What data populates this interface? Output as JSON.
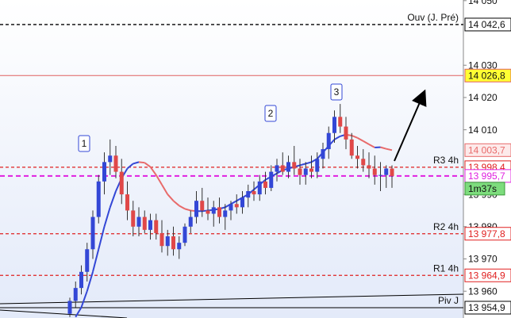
{
  "chart_data": {
    "type": "candlestick",
    "ylim": [
      13951.7,
      14050.2
    ],
    "yticks": [
      {
        "value": 14050,
        "label": "14 050"
      },
      {
        "value": 14030,
        "label": "14 030"
      },
      {
        "value": 14020,
        "label": "14 020"
      },
      {
        "value": 14010,
        "label": "14 010"
      },
      {
        "value": 13990,
        "label": "13 990"
      },
      {
        "value": 13980,
        "label": "13 980"
      },
      {
        "value": 13970,
        "label": "13 970"
      },
      {
        "value": 13960,
        "label": "13 960"
      }
    ],
    "up_color": "#3347d6",
    "down_color": "#e04848",
    "open": [
      13953,
      13957,
      13961,
      13966,
      13973,
      13983,
      13994,
      14000,
      14002,
      13997,
      13990,
      13985,
      13980,
      13983,
      13979,
      13982,
      13978,
      13974,
      13977,
      13973,
      13975,
      13980,
      13983,
      13988,
      13985,
      13984,
      13986,
      13983,
      13985,
      13987,
      13986,
      13989,
      13991,
      13990,
      13994,
      13992,
      13997,
      13999,
      13997,
      14000,
      13998,
      13996,
      13998,
      13997,
      14001,
      14004,
      14009,
      14014,
      14011,
      14007,
      14002,
      14001,
      13999,
      13998,
      13996,
      13996,
      13998
    ],
    "high": [
      13958,
      13963,
      13968,
      13975,
      13985,
      13996,
      14003,
      14007,
      14005,
      14001,
      13994,
      13988,
      13986,
      13985,
      13984,
      13984,
      13982,
      13979,
      13980,
      13977,
      13981,
      13985,
      13991,
      13992,
      13989,
      13988,
      13989,
      13987,
      13988,
      13990,
      13991,
      13993,
      13994,
      13996,
      13997,
      13999,
      14001,
      14003,
      14002,
      14005,
      14001,
      14000,
      14002,
      14003,
      14006,
      14011,
      14016,
      14018,
      14014,
      14009,
      14005,
      14004,
      14003,
      14002,
      14000,
      13999,
      13999
    ],
    "low": [
      13952,
      13955,
      13959,
      13963,
      13970,
      13981,
      13990,
      13996,
      13995,
      13987,
      13982,
      13977,
      13977,
      13978,
      13976,
      13976,
      13972,
      13971,
      13971,
      13970,
      13974,
      13978,
      13981,
      13983,
      13982,
      13980,
      13981,
      13979,
      13982,
      13984,
      13984,
      13986,
      13988,
      13988,
      13990,
      13991,
      13994,
      13996,
      13995,
      13996,
      13993,
      13993,
      13995,
      13995,
      13998,
      14001,
      14006,
      14009,
      14004,
      14001,
      13998,
      13997,
      13995,
      13993,
      13991,
      13992,
      13992
    ],
    "close": [
      13957,
      13961,
      13966,
      13973,
      13983,
      13994,
      14000,
      14002,
      13997,
      13990,
      13985,
      13980,
      13983,
      13979,
      13982,
      13978,
      13974,
      13977,
      13973,
      13975,
      13980,
      13983,
      13988,
      13985,
      13984,
      13986,
      13983,
      13985,
      13987,
      13986,
      13989,
      13991,
      13990,
      13994,
      13992,
      13997,
      13999,
      13997,
      14000,
      13998,
      13996,
      13998,
      13997,
      14001,
      14004,
      14009,
      14014,
      14011,
      14007,
      14002,
      14001,
      13999,
      13998,
      13996,
      13996,
      13998,
      13995.7
    ],
    "ma": {
      "up_color": "#3347d6",
      "down_color": "#e86a6a",
      "values": [
        null,
        13952,
        13955,
        13960,
        13966,
        13973,
        13980,
        13986,
        13991,
        13995,
        13998,
        13999.5,
        14000,
        13999.8,
        13998.5,
        13996,
        13993,
        13990,
        13988,
        13986.5,
        13985.5,
        13985,
        13984.8,
        13984.8,
        13985,
        13985.2,
        13985.5,
        13986,
        13987,
        13988,
        13989,
        13990,
        13991.5,
        13993,
        13994.5,
        13995.5,
        13996.5,
        13997.5,
        13998,
        13998.5,
        13999,
        13999.5,
        14000,
        14001,
        14003,
        14005,
        14007,
        14008,
        14008.5,
        14008.2,
        14007.5,
        14006.5,
        14005.5,
        14004.5,
        14004.6,
        14004.1,
        14003.7
      ]
    },
    "ma_label": {
      "value": 14003.7,
      "label": "14 003,7"
    },
    "levels": [
      {
        "name": "Ouv (J. Pré)",
        "value": 14042.6,
        "label": "14 042,6",
        "color": "#000000",
        "dash": true
      },
      {
        "value": 14026.8,
        "label": "14 026,8",
        "color": "#e06060",
        "dash": false
      },
      {
        "name": "R3 4h",
        "value": 13998.4,
        "label": "13 998,4",
        "color": "#e02020",
        "dash": true
      },
      {
        "value": 13995.7,
        "label": "13 995,7",
        "color": "#e020e0",
        "dash": true
      },
      {
        "name": "R2 4h",
        "value": 13977.8,
        "label": "13 977,8",
        "color": "#e02020",
        "dash": true
      },
      {
        "name": "R1 4h",
        "value": 13964.9,
        "label": "13 964,9",
        "color": "#e02020",
        "dash": true
      },
      {
        "name": "Piv J",
        "value": 13954.9,
        "label": "13 954,9",
        "color": "#000000",
        "dash": false
      }
    ],
    "countdown": "1m37s",
    "waves": [
      "1",
      "2",
      "3"
    ]
  }
}
